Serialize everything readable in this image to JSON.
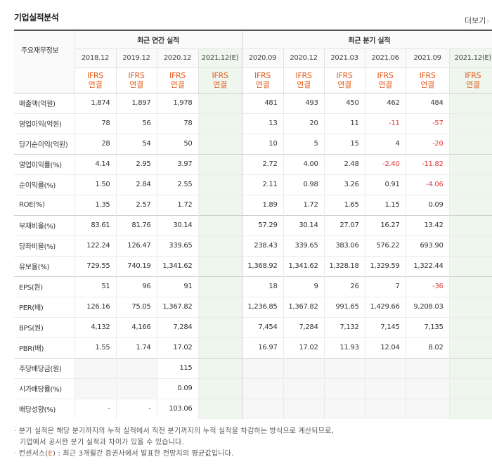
{
  "header": {
    "title": "기업실적분석",
    "more": "더보기"
  },
  "table": {
    "corner": "주요재무정보",
    "annual_group": "최근 연간 실적",
    "quarter_group": "최근 분기 실적",
    "annual_periods": [
      {
        "label": "2018.12",
        "est": false
      },
      {
        "label": "2019.12",
        "est": false
      },
      {
        "label": "2020.12",
        "est": false
      },
      {
        "label": "2021.12(E)",
        "est": true
      }
    ],
    "quarter_periods": [
      {
        "label": "2020.09",
        "est": false
      },
      {
        "label": "2020.12",
        "est": false
      },
      {
        "label": "2021.03",
        "est": false
      },
      {
        "label": "2021.06",
        "est": false
      },
      {
        "label": "2021.09",
        "est": false
      },
      {
        "label": "2021.12(E)",
        "est": true
      }
    ],
    "standard_line1": "IFRS",
    "standard_line2": "연결",
    "rows": [
      {
        "label": "매출액(억원)",
        "values": [
          "1,874",
          "1,897",
          "1,978",
          "",
          "481",
          "493",
          "450",
          "462",
          "484",
          ""
        ]
      },
      {
        "label": "영업이익(억원)",
        "values": [
          "78",
          "56",
          "78",
          "",
          "13",
          "20",
          "11",
          "-11",
          "-57",
          ""
        ]
      },
      {
        "label": "당기순이익(억원)",
        "values": [
          "28",
          "54",
          "50",
          "",
          "10",
          "5",
          "15",
          "4",
          "-20",
          ""
        ]
      },
      {
        "label": "영업이익률(%)",
        "values": [
          "4.14",
          "2.95",
          "3.97",
          "",
          "2.72",
          "4.00",
          "2.48",
          "-2.40",
          "-11.82",
          ""
        ]
      },
      {
        "label": "순이익률(%)",
        "values": [
          "1.50",
          "2.84",
          "2.55",
          "",
          "2.11",
          "0.98",
          "3.26",
          "0.91",
          "-4.06",
          ""
        ]
      },
      {
        "label": "ROE(%)",
        "values": [
          "1.35",
          "2.57",
          "1.72",
          "",
          "1.89",
          "1.72",
          "1.65",
          "1.15",
          "0.09",
          ""
        ]
      },
      {
        "label": "부채비율(%)",
        "values": [
          "83.61",
          "81.76",
          "30.14",
          "",
          "57.29",
          "30.14",
          "27.07",
          "16.27",
          "13.42",
          ""
        ]
      },
      {
        "label": "당좌비율(%)",
        "values": [
          "122.24",
          "126.47",
          "339.65",
          "",
          "238.43",
          "339.65",
          "383.06",
          "576.22",
          "693.90",
          ""
        ]
      },
      {
        "label": "유보율(%)",
        "values": [
          "729.55",
          "740.19",
          "1,341.62",
          "",
          "1,368.92",
          "1,341.62",
          "1,328.18",
          "1,329.59",
          "1,322.44",
          ""
        ]
      },
      {
        "label": "EPS(원)",
        "values": [
          "51",
          "96",
          "91",
          "",
          "18",
          "9",
          "26",
          "7",
          "-36",
          ""
        ]
      },
      {
        "label": "PER(배)",
        "values": [
          "126.16",
          "75.05",
          "1,367.82",
          "",
          "1,236.85",
          "1,367.82",
          "991.65",
          "1,429.66",
          "9,208.03",
          ""
        ]
      },
      {
        "label": "BPS(원)",
        "values": [
          "4,132",
          "4,166",
          "7,284",
          "",
          "7,454",
          "7,284",
          "7,132",
          "7,145",
          "7,135",
          ""
        ]
      },
      {
        "label": "PBR(배)",
        "values": [
          "1.55",
          "1.74",
          "17.02",
          "",
          "16.97",
          "17.02",
          "11.93",
          "12.04",
          "8.02",
          ""
        ]
      },
      {
        "label": "주당배당금(원)",
        "values": [
          "",
          "",
          "115",
          "",
          "",
          "",
          "",
          "",
          "",
          ""
        ]
      },
      {
        "label": "시가배당률(%)",
        "values": [
          "",
          "",
          "0.09",
          "",
          "",
          "",
          "",
          "",
          "",
          ""
        ]
      },
      {
        "label": "배당성향(%)",
        "values": [
          "-",
          "-",
          "103.06",
          "",
          "",
          "",
          "",
          "",
          "",
          ""
        ]
      }
    ]
  },
  "notes": {
    "line1": "분기 실적은 해당 분기까지의 누적 실적에서 직전 분기까지의 누적 실적을 차감하는 방식으로 계산되므로,",
    "line2": "기업에서 공시한 분기 실적과 차이가 있을 수 있습니다.",
    "line3a": "컨센서스(",
    "line3e": "E",
    "line3b": ") : 최근 3개월간 증권사에서 발표한 전망치의 평균값입니다."
  }
}
